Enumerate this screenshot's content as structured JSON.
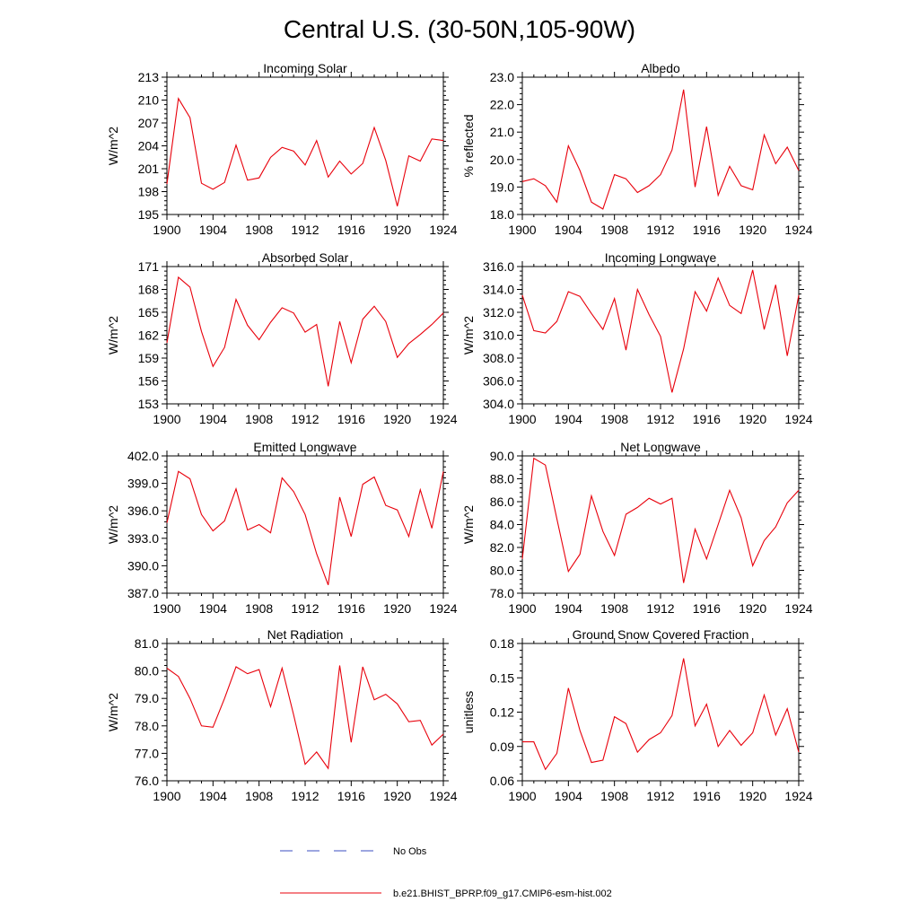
{
  "figure": {
    "title": "Central U.S. (30-50N,105-90W)",
    "line_color": "#e8000b",
    "obs_color": "#3b4cc0"
  },
  "legend": {
    "items": [
      {
        "label": "No Obs",
        "style": "dashed",
        "color": "#3b4cc0"
      },
      {
        "label": "b.e21.BHIST_BPRP.f09_g17.CMIP6-esm-hist.002",
        "style": "solid",
        "color": "#e8000b"
      }
    ]
  },
  "chart_data": [
    {
      "type": "line",
      "title": "Incoming Solar",
      "ylabel": "W/m^2",
      "xlabel": "",
      "xlim": [
        1900,
        1924
      ],
      "ylim": [
        195,
        213
      ],
      "xticks": [
        "1900",
        "1904",
        "1908",
        "1912",
        "1916",
        "1920",
        "1924"
      ],
      "yticks": [
        "195",
        "198",
        "201",
        "204",
        "207",
        "210",
        "213"
      ],
      "x": [
        1900,
        1901,
        1902,
        1903,
        1904,
        1905,
        1906,
        1907,
        1908,
        1909,
        1910,
        1911,
        1912,
        1913,
        1914,
        1915,
        1916,
        1917,
        1918,
        1919,
        1920,
        1921,
        1922,
        1923,
        1924
      ],
      "series": [
        {
          "name": "b.e21.BHIST_BPRP.f09_g17.CMIP6-esm-hist.002",
          "values": [
            199.0,
            210.2,
            207.7,
            199.1,
            198.3,
            199.2,
            204.1,
            199.5,
            199.8,
            202.5,
            203.8,
            203.3,
            201.5,
            204.7,
            199.9,
            202.0,
            200.3,
            201.7,
            206.4,
            202.1,
            196.1,
            202.7,
            202.0,
            204.9,
            204.7
          ]
        }
      ]
    },
    {
      "type": "line",
      "title": "Albedo",
      "ylabel": "% reflected",
      "xlabel": "",
      "xlim": [
        1900,
        1924
      ],
      "ylim": [
        18.0,
        23.0
      ],
      "xticks": [
        "1900",
        "1904",
        "1908",
        "1912",
        "1916",
        "1920",
        "1924"
      ],
      "yticks": [
        "18.0",
        "19.0",
        "20.0",
        "21.0",
        "22.0",
        "23.0"
      ],
      "x": [
        1900,
        1901,
        1902,
        1903,
        1904,
        1905,
        1906,
        1907,
        1908,
        1909,
        1910,
        1911,
        1912,
        1913,
        1914,
        1915,
        1916,
        1917,
        1918,
        1919,
        1920,
        1921,
        1922,
        1923,
        1924
      ],
      "series": [
        {
          "name": "b.e21.BHIST_BPRP.f09_g17.CMIP6-esm-hist.002",
          "values": [
            19.2,
            19.3,
            19.05,
            18.45,
            20.5,
            19.6,
            18.45,
            18.2,
            19.45,
            19.3,
            18.8,
            19.05,
            19.45,
            20.35,
            22.55,
            19.0,
            21.2,
            18.7,
            19.75,
            19.05,
            18.9,
            20.9,
            19.85,
            20.45,
            19.6
          ]
        }
      ]
    },
    {
      "type": "line",
      "title": "Absorbed Solar",
      "ylabel": "W/m^2",
      "xlabel": "",
      "xlim": [
        1900,
        1924
      ],
      "ylim": [
        153,
        171
      ],
      "xticks": [
        "1900",
        "1904",
        "1908",
        "1912",
        "1916",
        "1920",
        "1924"
      ],
      "yticks": [
        "153",
        "156",
        "159",
        "162",
        "165",
        "168",
        "171"
      ],
      "x": [
        1900,
        1901,
        1902,
        1903,
        1904,
        1905,
        1906,
        1907,
        1908,
        1909,
        1910,
        1911,
        1912,
        1913,
        1914,
        1915,
        1916,
        1917,
        1918,
        1919,
        1920,
        1921,
        1922,
        1923,
        1924
      ],
      "series": [
        {
          "name": "b.e21.BHIST_BPRP.f09_g17.CMIP6-esm-hist.002",
          "values": [
            161.0,
            169.6,
            168.3,
            162.5,
            157.9,
            160.4,
            166.7,
            163.3,
            161.4,
            163.7,
            165.6,
            164.9,
            162.4,
            163.4,
            155.3,
            163.8,
            158.4,
            164.1,
            165.8,
            163.8,
            159.1,
            160.9,
            162.1,
            163.4,
            164.9
          ]
        }
      ]
    },
    {
      "type": "line",
      "title": "Incoming Longwave",
      "ylabel": "W/m^2",
      "xlabel": "",
      "xlim": [
        1900,
        1924
      ],
      "ylim": [
        304.0,
        316.0
      ],
      "xticks": [
        "1900",
        "1904",
        "1908",
        "1912",
        "1916",
        "1920",
        "1924"
      ],
      "yticks": [
        "304.0",
        "306.0",
        "308.0",
        "310.0",
        "312.0",
        "314.0",
        "316.0"
      ],
      "x": [
        1900,
        1901,
        1902,
        1903,
        1904,
        1905,
        1906,
        1907,
        1908,
        1909,
        1910,
        1911,
        1912,
        1913,
        1914,
        1915,
        1916,
        1917,
        1918,
        1919,
        1920,
        1921,
        1922,
        1923,
        1924
      ],
      "series": [
        {
          "name": "b.e21.BHIST_BPRP.f09_g17.CMIP6-esm-hist.002",
          "values": [
            313.5,
            310.4,
            310.2,
            311.2,
            313.8,
            313.4,
            311.9,
            310.5,
            313.2,
            308.7,
            314.0,
            311.8,
            309.9,
            305.0,
            308.8,
            313.8,
            312.1,
            315.0,
            312.6,
            311.9,
            315.7,
            310.5,
            314.4,
            308.2,
            313.5
          ]
        }
      ]
    },
    {
      "type": "line",
      "title": "Emitted Longwave",
      "ylabel": "W/m^2",
      "xlabel": "",
      "xlim": [
        1900,
        1924
      ],
      "ylim": [
        387.0,
        402.0
      ],
      "xticks": [
        "1900",
        "1904",
        "1908",
        "1912",
        "1916",
        "1920",
        "1924"
      ],
      "yticks": [
        "387.0",
        "390.0",
        "393.0",
        "396.0",
        "399.0",
        "402.0"
      ],
      "x": [
        1900,
        1901,
        1902,
        1903,
        1904,
        1905,
        1906,
        1907,
        1908,
        1909,
        1910,
        1911,
        1912,
        1913,
        1914,
        1915,
        1916,
        1917,
        1918,
        1919,
        1920,
        1921,
        1922,
        1923,
        1924
      ],
      "series": [
        {
          "name": "b.e21.BHIST_BPRP.f09_g17.CMIP6-esm-hist.002",
          "values": [
            394.7,
            400.3,
            399.5,
            395.6,
            393.8,
            394.9,
            398.4,
            393.9,
            394.5,
            393.6,
            399.6,
            398.1,
            395.6,
            391.3,
            387.9,
            397.5,
            393.2,
            398.9,
            399.7,
            396.6,
            396.1,
            393.2,
            398.3,
            394.1,
            400.3
          ]
        }
      ]
    },
    {
      "type": "line",
      "title": "Net Longwave",
      "ylabel": "W/m^2",
      "xlabel": "",
      "xlim": [
        1900,
        1924
      ],
      "ylim": [
        78.0,
        90.0
      ],
      "xticks": [
        "1900",
        "1904",
        "1908",
        "1912",
        "1916",
        "1920",
        "1924"
      ],
      "yticks": [
        "78.0",
        "80.0",
        "82.0",
        "84.0",
        "86.0",
        "88.0",
        "90.0"
      ],
      "x": [
        1900,
        1901,
        1902,
        1903,
        1904,
        1905,
        1906,
        1907,
        1908,
        1909,
        1910,
        1911,
        1912,
        1913,
        1914,
        1915,
        1916,
        1917,
        1918,
        1919,
        1920,
        1921,
        1922,
        1923,
        1924
      ],
      "series": [
        {
          "name": "b.e21.BHIST_BPRP.f09_g17.CMIP6-esm-hist.002",
          "values": [
            81.0,
            89.8,
            89.2,
            84.5,
            79.9,
            81.4,
            86.5,
            83.4,
            81.3,
            84.9,
            85.5,
            86.3,
            85.8,
            86.3,
            78.9,
            83.6,
            81.0,
            84.0,
            87.0,
            84.6,
            80.4,
            82.6,
            83.8,
            85.9,
            87.0
          ]
        }
      ]
    },
    {
      "type": "line",
      "title": "Net Radiation",
      "ylabel": "W/m^2",
      "xlabel": "",
      "xlim": [
        1900,
        1924
      ],
      "ylim": [
        76.0,
        81.0
      ],
      "xticks": [
        "1900",
        "1904",
        "1908",
        "1912",
        "1916",
        "1920",
        "1924"
      ],
      "yticks": [
        "76.0",
        "77.0",
        "78.0",
        "79.0",
        "80.0",
        "81.0"
      ],
      "x": [
        1900,
        1901,
        1902,
        1903,
        1904,
        1905,
        1906,
        1907,
        1908,
        1909,
        1910,
        1911,
        1912,
        1913,
        1914,
        1915,
        1916,
        1917,
        1918,
        1919,
        1920,
        1921,
        1922,
        1923,
        1924
      ],
      "series": [
        {
          "name": "b.e21.BHIST_BPRP.f09_g17.CMIP6-esm-hist.002",
          "values": [
            80.1,
            79.8,
            79.0,
            78.0,
            77.95,
            79.0,
            80.15,
            79.9,
            80.05,
            78.7,
            80.1,
            78.4,
            76.6,
            77.05,
            76.45,
            80.2,
            77.4,
            80.15,
            78.95,
            79.15,
            78.8,
            78.15,
            78.2,
            77.3,
            77.7
          ]
        }
      ]
    },
    {
      "type": "line",
      "title": "Ground Snow Covered Fraction",
      "ylabel": "unitless",
      "xlabel": "",
      "xlim": [
        1900,
        1924
      ],
      "ylim": [
        0.06,
        0.18
      ],
      "xticks": [
        "1900",
        "1904",
        "1908",
        "1912",
        "1916",
        "1920",
        "1924"
      ],
      "yticks": [
        "0.06",
        "0.09",
        "0.12",
        "0.15",
        "0.18"
      ],
      "x": [
        1900,
        1901,
        1902,
        1903,
        1904,
        1905,
        1906,
        1907,
        1908,
        1909,
        1910,
        1911,
        1912,
        1913,
        1914,
        1915,
        1916,
        1917,
        1918,
        1919,
        1920,
        1921,
        1922,
        1923,
        1924
      ],
      "series": [
        {
          "name": "b.e21.BHIST_BPRP.f09_g17.CMIP6-esm-hist.002",
          "values": [
            0.094,
            0.094,
            0.07,
            0.084,
            0.141,
            0.104,
            0.076,
            0.078,
            0.116,
            0.11,
            0.085,
            0.096,
            0.102,
            0.117,
            0.167,
            0.108,
            0.127,
            0.09,
            0.104,
            0.091,
            0.102,
            0.135,
            0.1,
            0.123,
            0.085
          ]
        }
      ]
    }
  ]
}
